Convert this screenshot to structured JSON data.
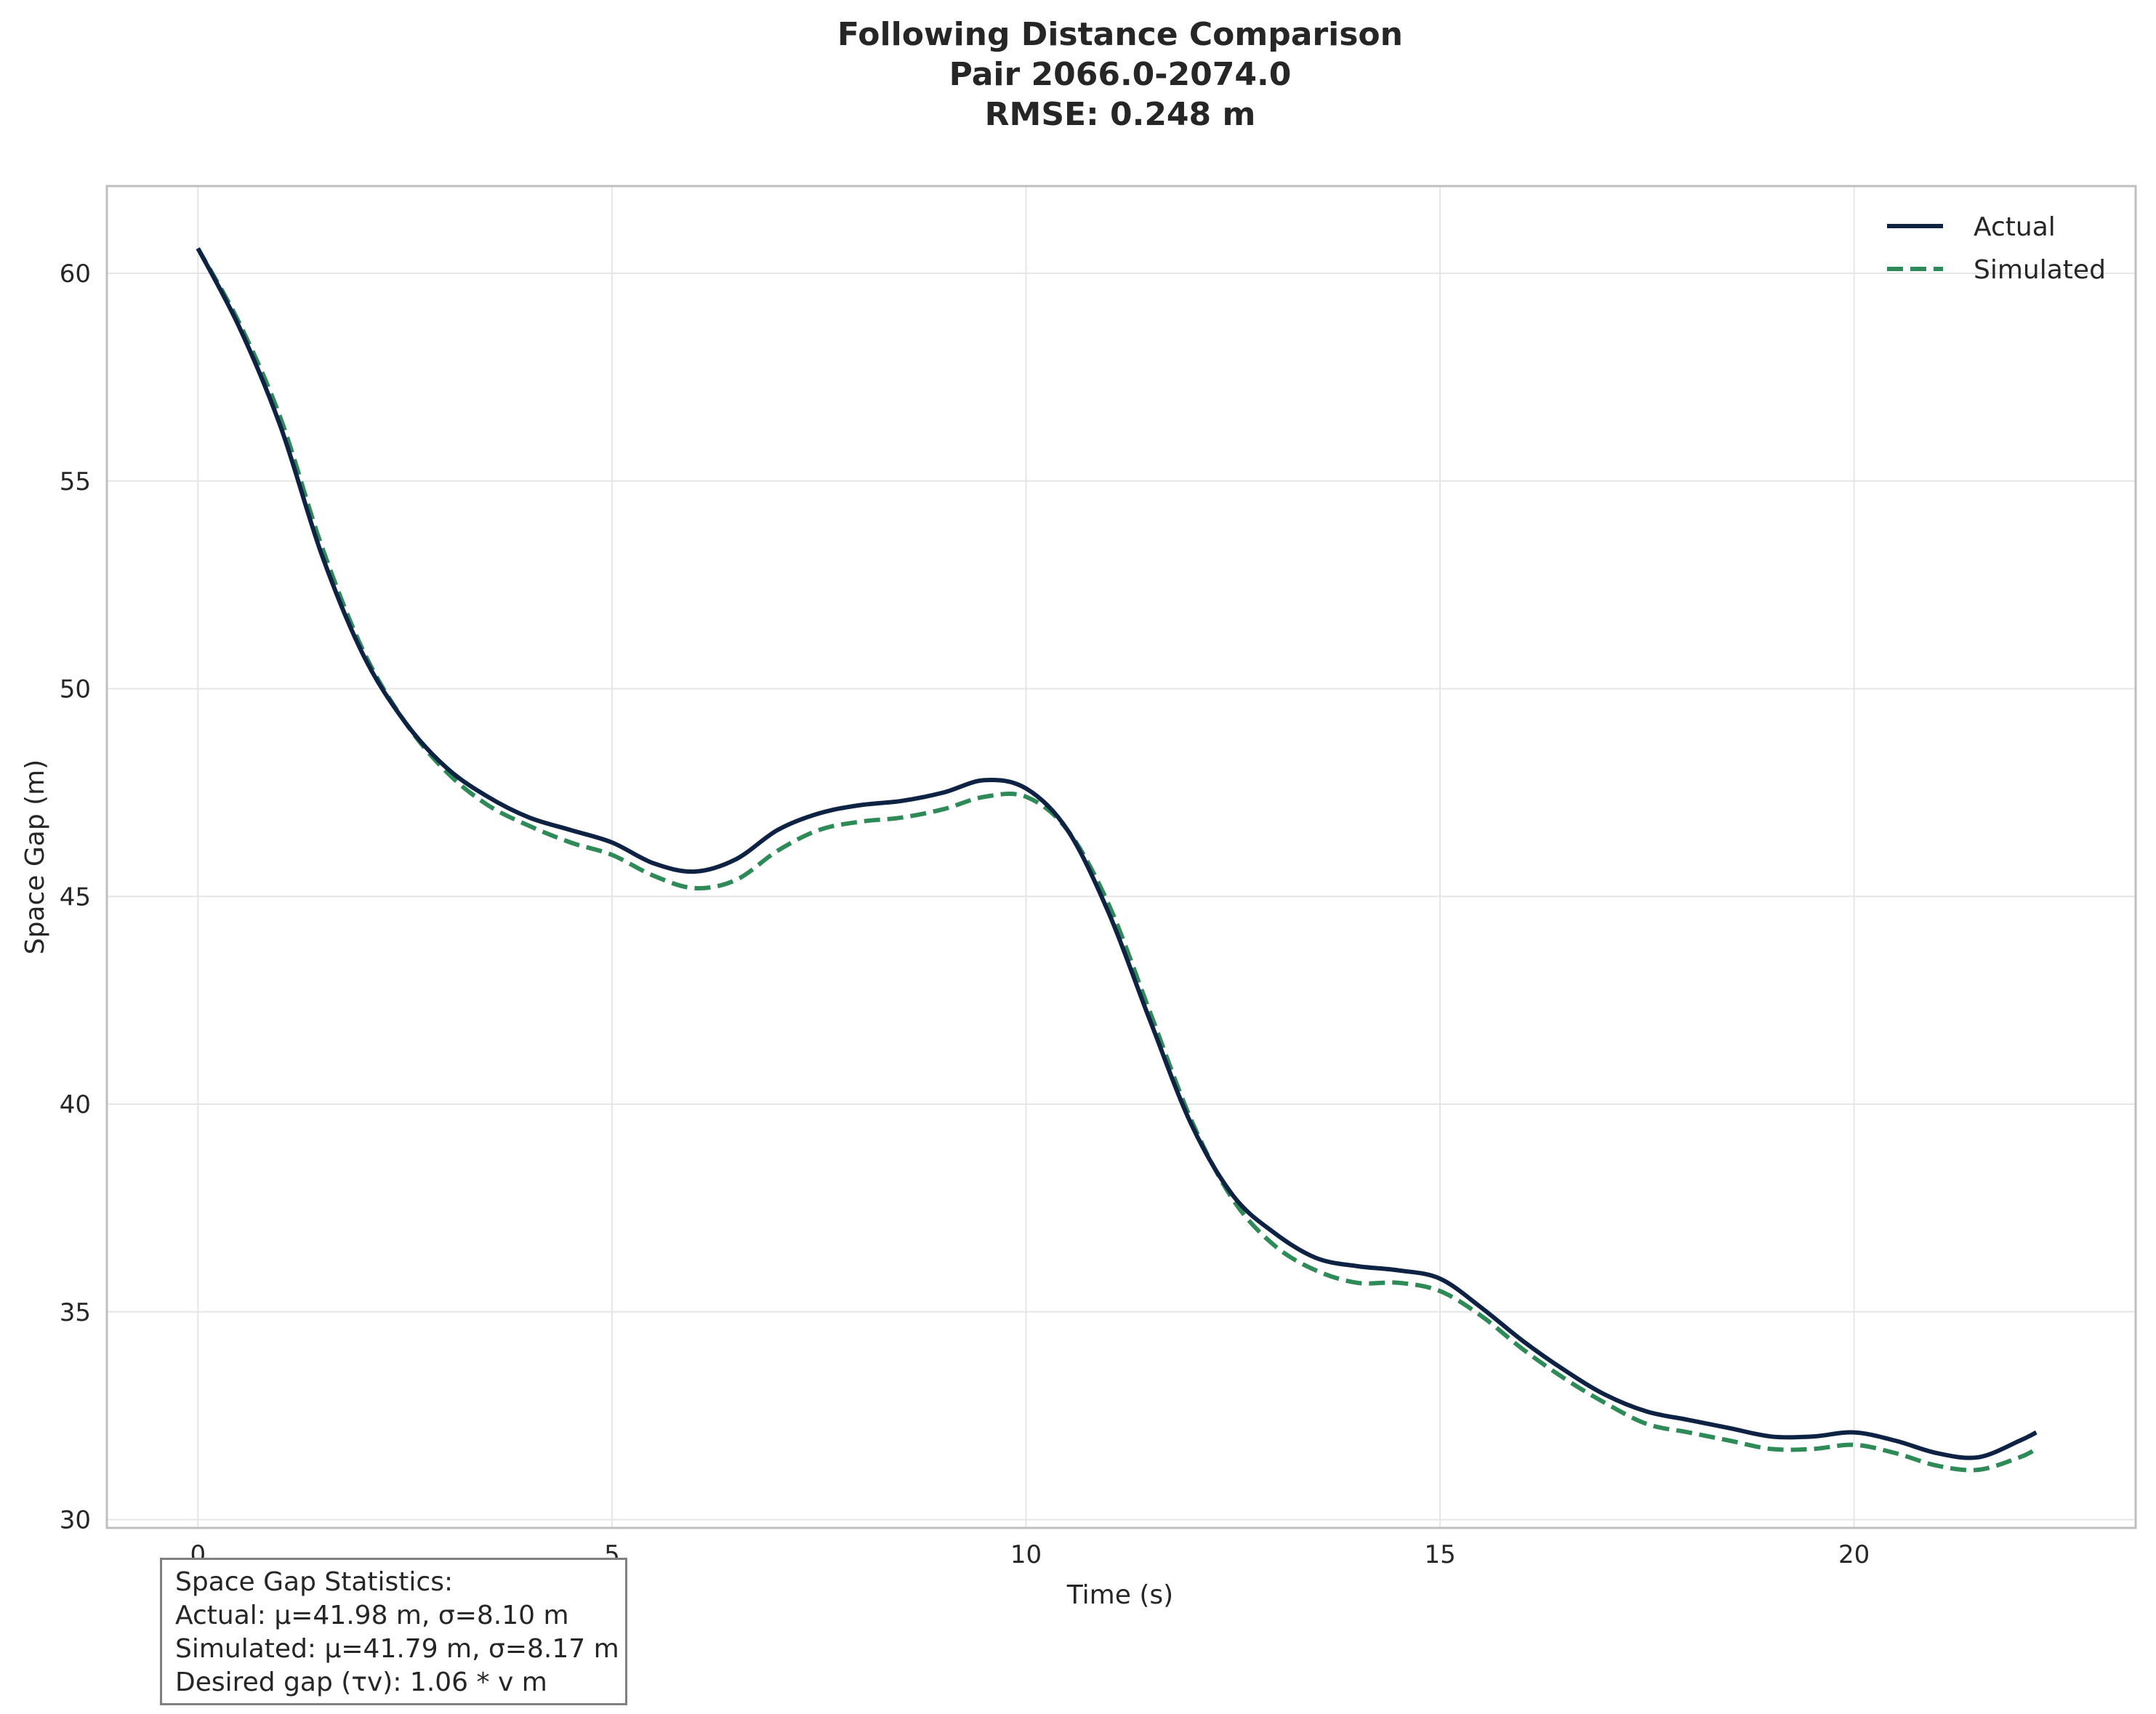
{
  "chart_data": {
    "type": "line",
    "title": [
      "Following Distance Comparison",
      "Pair 2066.0-2074.0",
      "RMSE: 0.248 m"
    ],
    "xlabel": "Time (s)",
    "ylabel": "Space Gap (m)",
    "xlim": [
      -1.1,
      23.4
    ],
    "ylim": [
      29.8,
      62.1
    ],
    "xticks": [
      0,
      5,
      10,
      15,
      20
    ],
    "yticks": [
      30,
      35,
      40,
      45,
      50,
      55,
      60
    ],
    "grid": true,
    "legend_position": "top-right",
    "series": [
      {
        "name": "Actual",
        "color": "#0e2244",
        "style": "solid",
        "x": [
          0,
          0.5,
          1.0,
          1.5,
          2.0,
          2.5,
          3.0,
          3.5,
          4.0,
          4.5,
          5.0,
          5.5,
          6.0,
          6.5,
          7.0,
          7.5,
          8.0,
          8.5,
          9.0,
          9.5,
          10.0,
          10.5,
          11.0,
          11.5,
          12.0,
          12.5,
          13.0,
          13.5,
          14.0,
          14.5,
          15.0,
          15.5,
          16.0,
          16.5,
          17.0,
          17.5,
          18.0,
          18.5,
          19.0,
          19.5,
          20.0,
          20.5,
          21.0,
          21.5,
          22.0,
          22.2
        ],
        "y": [
          60.6,
          58.7,
          56.3,
          53.2,
          50.8,
          49.2,
          48.1,
          47.4,
          46.9,
          46.6,
          46.3,
          45.8,
          45.6,
          45.9,
          46.6,
          47.0,
          47.2,
          47.3,
          47.5,
          47.8,
          47.6,
          46.6,
          44.6,
          42.0,
          39.5,
          37.8,
          36.9,
          36.3,
          36.1,
          36.0,
          35.8,
          35.1,
          34.3,
          33.6,
          33.0,
          32.6,
          32.4,
          32.2,
          32.0,
          32.0,
          32.1,
          31.9,
          31.6,
          31.5,
          31.9,
          32.1
        ]
      },
      {
        "name": "Simulated",
        "color": "#2e8b57",
        "style": "dashed",
        "x": [
          0,
          0.5,
          1.0,
          1.5,
          2.0,
          2.5,
          3.0,
          3.5,
          4.0,
          4.5,
          5.0,
          5.5,
          6.0,
          6.5,
          7.0,
          7.5,
          8.0,
          8.5,
          9.0,
          9.5,
          10.0,
          10.5,
          11.0,
          11.5,
          12.0,
          12.5,
          13.0,
          13.5,
          14.0,
          14.5,
          15.0,
          15.5,
          16.0,
          16.5,
          17.0,
          17.5,
          18.0,
          18.5,
          19.0,
          19.5,
          20.0,
          20.5,
          21.0,
          21.5,
          22.0,
          22.2
        ],
        "y": [
          60.6,
          58.8,
          56.5,
          53.4,
          50.9,
          49.2,
          48.0,
          47.2,
          46.7,
          46.3,
          46.0,
          45.5,
          45.2,
          45.4,
          46.1,
          46.6,
          46.8,
          46.9,
          47.1,
          47.4,
          47.4,
          46.6,
          44.8,
          42.2,
          39.6,
          37.7,
          36.6,
          36.0,
          35.7,
          35.7,
          35.5,
          34.9,
          34.1,
          33.4,
          32.8,
          32.3,
          32.1,
          31.9,
          31.7,
          31.7,
          31.8,
          31.6,
          31.3,
          31.2,
          31.5,
          31.7
        ]
      }
    ],
    "annotation": [
      "Space Gap Statistics:",
      "Actual: μ=41.98 m, σ=8.10 m",
      "Simulated: μ=41.79 m, σ=8.17 m",
      "Desired gap (τv): 1.06 * v m"
    ]
  }
}
